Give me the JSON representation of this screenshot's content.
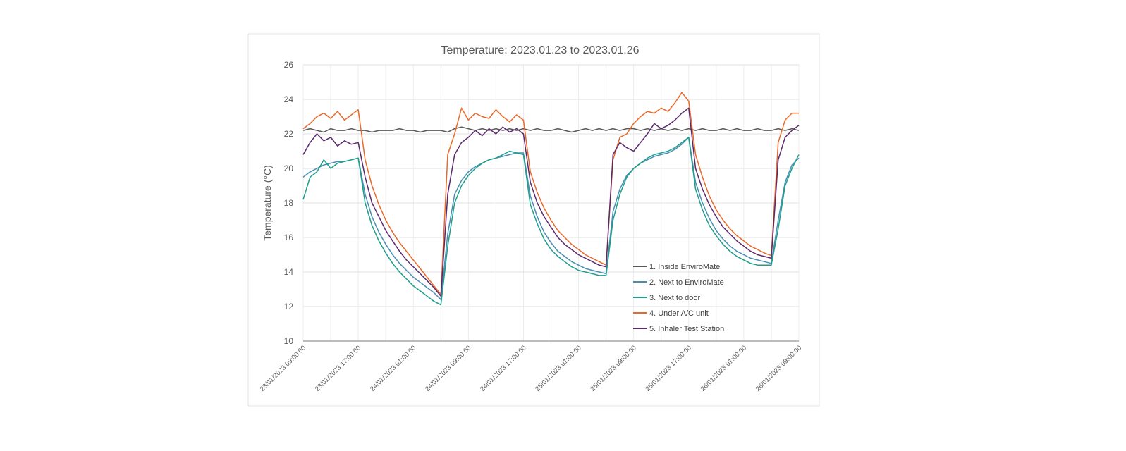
{
  "chart_data": {
    "type": "line",
    "title": "Temperature: 2023.01.23 to 2023.01.26",
    "xlabel": "",
    "ylabel": "Temperature (°C)",
    "ylim": [
      10,
      26
    ],
    "yticks": [
      10,
      12,
      14,
      16,
      18,
      20,
      22,
      24,
      26
    ],
    "x_start": "23/01/2023 09:00:00",
    "x_end": "26/01/2023 09:00:00",
    "x_step": "1 hour",
    "xtick_labels": [
      "23/01/2023 09:00:00",
      "23/01/2023 17:00:00",
      "24/01/2023 01:00:00",
      "24/01/2023 09:00:00",
      "24/01/2023 17:00:00",
      "25/01/2023 01:00:00",
      "25/01/2023 09:00:00",
      "25/01/2023 17:00:00",
      "26/01/2023 01:00:00",
      "26/01/2023 09:00:00"
    ],
    "grid": true,
    "legend_position": "bottom-right inside plot",
    "series": [
      {
        "name": "1. Inside EnviroMate",
        "color": "#595959",
        "values": [
          22.2,
          22.3,
          22.2,
          22.1,
          22.3,
          22.2,
          22.2,
          22.3,
          22.2,
          22.2,
          22.1,
          22.2,
          22.2,
          22.2,
          22.3,
          22.2,
          22.2,
          22.1,
          22.2,
          22.2,
          22.2,
          22.1,
          22.3,
          22.4,
          22.3,
          22.2,
          22.3,
          22.2,
          22.3,
          22.2,
          22.3,
          22.2,
          22.3,
          22.2,
          22.3,
          22.2,
          22.2,
          22.3,
          22.2,
          22.1,
          22.2,
          22.3,
          22.2,
          22.3,
          22.2,
          22.3,
          22.2,
          22.3,
          22.3,
          22.2,
          22.3,
          22.2,
          22.3,
          22.2,
          22.3,
          22.2,
          22.3,
          22.2,
          22.3,
          22.2,
          22.2,
          22.3,
          22.2,
          22.3,
          22.2,
          22.2,
          22.3,
          22.2,
          22.2,
          22.3,
          22.2,
          22.3,
          22.2
        ]
      },
      {
        "name": "2. Next to EnviroMate",
        "color": "#4a8db5",
        "values": [
          19.5,
          19.8,
          20.0,
          20.2,
          20.3,
          20.4,
          20.4,
          20.5,
          20.6,
          18.5,
          17.2,
          16.3,
          15.6,
          15.0,
          14.5,
          14.1,
          13.7,
          13.4,
          13.1,
          12.8,
          12.4,
          16.2,
          18.5,
          19.3,
          19.8,
          20.1,
          20.3,
          20.5,
          20.6,
          20.7,
          20.8,
          20.9,
          20.9,
          18.4,
          17.2,
          16.3,
          15.7,
          15.2,
          14.9,
          14.6,
          14.4,
          14.2,
          14.1,
          14.0,
          13.9,
          17.5,
          18.8,
          19.6,
          20.0,
          20.3,
          20.5,
          20.7,
          20.8,
          20.9,
          21.1,
          21.4,
          21.8,
          19.2,
          18.0,
          17.1,
          16.4,
          15.9,
          15.5,
          15.2,
          15.0,
          14.8,
          14.7,
          14.6,
          14.5,
          17.0,
          19.2,
          20.2,
          20.6
        ]
      },
      {
        "name": "3. Next to door",
        "color": "#1f9e8a",
        "values": [
          18.2,
          19.5,
          19.8,
          20.5,
          20.0,
          20.3,
          20.4,
          20.5,
          20.6,
          18.0,
          16.7,
          15.8,
          15.1,
          14.5,
          14.0,
          13.6,
          13.2,
          12.9,
          12.6,
          12.3,
          12.1,
          15.5,
          18.0,
          19.0,
          19.6,
          20.0,
          20.3,
          20.5,
          20.6,
          20.8,
          21.0,
          20.9,
          20.8,
          17.9,
          16.8,
          15.9,
          15.3,
          14.9,
          14.6,
          14.3,
          14.1,
          14.0,
          13.9,
          13.8,
          13.8,
          17.0,
          18.5,
          19.5,
          20.0,
          20.3,
          20.6,
          20.8,
          20.9,
          21.0,
          21.2,
          21.5,
          21.8,
          18.8,
          17.6,
          16.7,
          16.1,
          15.6,
          15.2,
          14.9,
          14.7,
          14.5,
          14.4,
          14.4,
          14.4,
          16.5,
          19.0,
          20.0,
          20.8
        ]
      },
      {
        "name": "4. Under A/C unit",
        "color": "#e8692a",
        "values": [
          22.3,
          22.6,
          23.0,
          23.2,
          22.9,
          23.3,
          22.8,
          23.1,
          23.4,
          20.5,
          19.0,
          17.9,
          17.0,
          16.3,
          15.7,
          15.2,
          14.7,
          14.2,
          13.7,
          13.2,
          12.7,
          20.8,
          22.0,
          23.5,
          22.8,
          23.2,
          23.0,
          22.9,
          23.4,
          23.0,
          22.7,
          23.1,
          22.8,
          19.8,
          18.6,
          17.7,
          17.0,
          16.4,
          16.0,
          15.6,
          15.3,
          15.0,
          14.8,
          14.6,
          14.4,
          20.5,
          21.8,
          22.0,
          22.6,
          23.0,
          23.3,
          23.2,
          23.5,
          23.3,
          23.8,
          24.4,
          23.9,
          20.8,
          19.5,
          18.4,
          17.6,
          17.0,
          16.5,
          16.1,
          15.8,
          15.5,
          15.3,
          15.1,
          14.95,
          21.5,
          22.8,
          23.2,
          23.2
        ]
      },
      {
        "name": "5. Inhaler Test Station",
        "color": "#5b2a6e",
        "values": [
          20.8,
          21.5,
          22.0,
          21.6,
          21.8,
          21.3,
          21.6,
          21.4,
          21.5,
          19.5,
          18.0,
          17.2,
          16.4,
          15.8,
          15.2,
          14.7,
          14.3,
          13.9,
          13.5,
          13.1,
          12.6,
          18.5,
          20.8,
          21.5,
          21.8,
          22.2,
          21.9,
          22.3,
          22.0,
          22.4,
          22.1,
          22.3,
          22.0,
          19.2,
          18.0,
          17.2,
          16.6,
          16.0,
          15.6,
          15.3,
          15.0,
          14.8,
          14.6,
          14.4,
          14.3,
          20.8,
          21.5,
          21.2,
          21.0,
          21.5,
          22.0,
          22.6,
          22.3,
          22.5,
          22.8,
          23.2,
          23.5,
          20.0,
          18.8,
          17.9,
          17.2,
          16.6,
          16.2,
          15.8,
          15.5,
          15.2,
          15.0,
          14.9,
          14.8,
          20.5,
          21.8,
          22.2,
          22.5
        ]
      }
    ]
  }
}
